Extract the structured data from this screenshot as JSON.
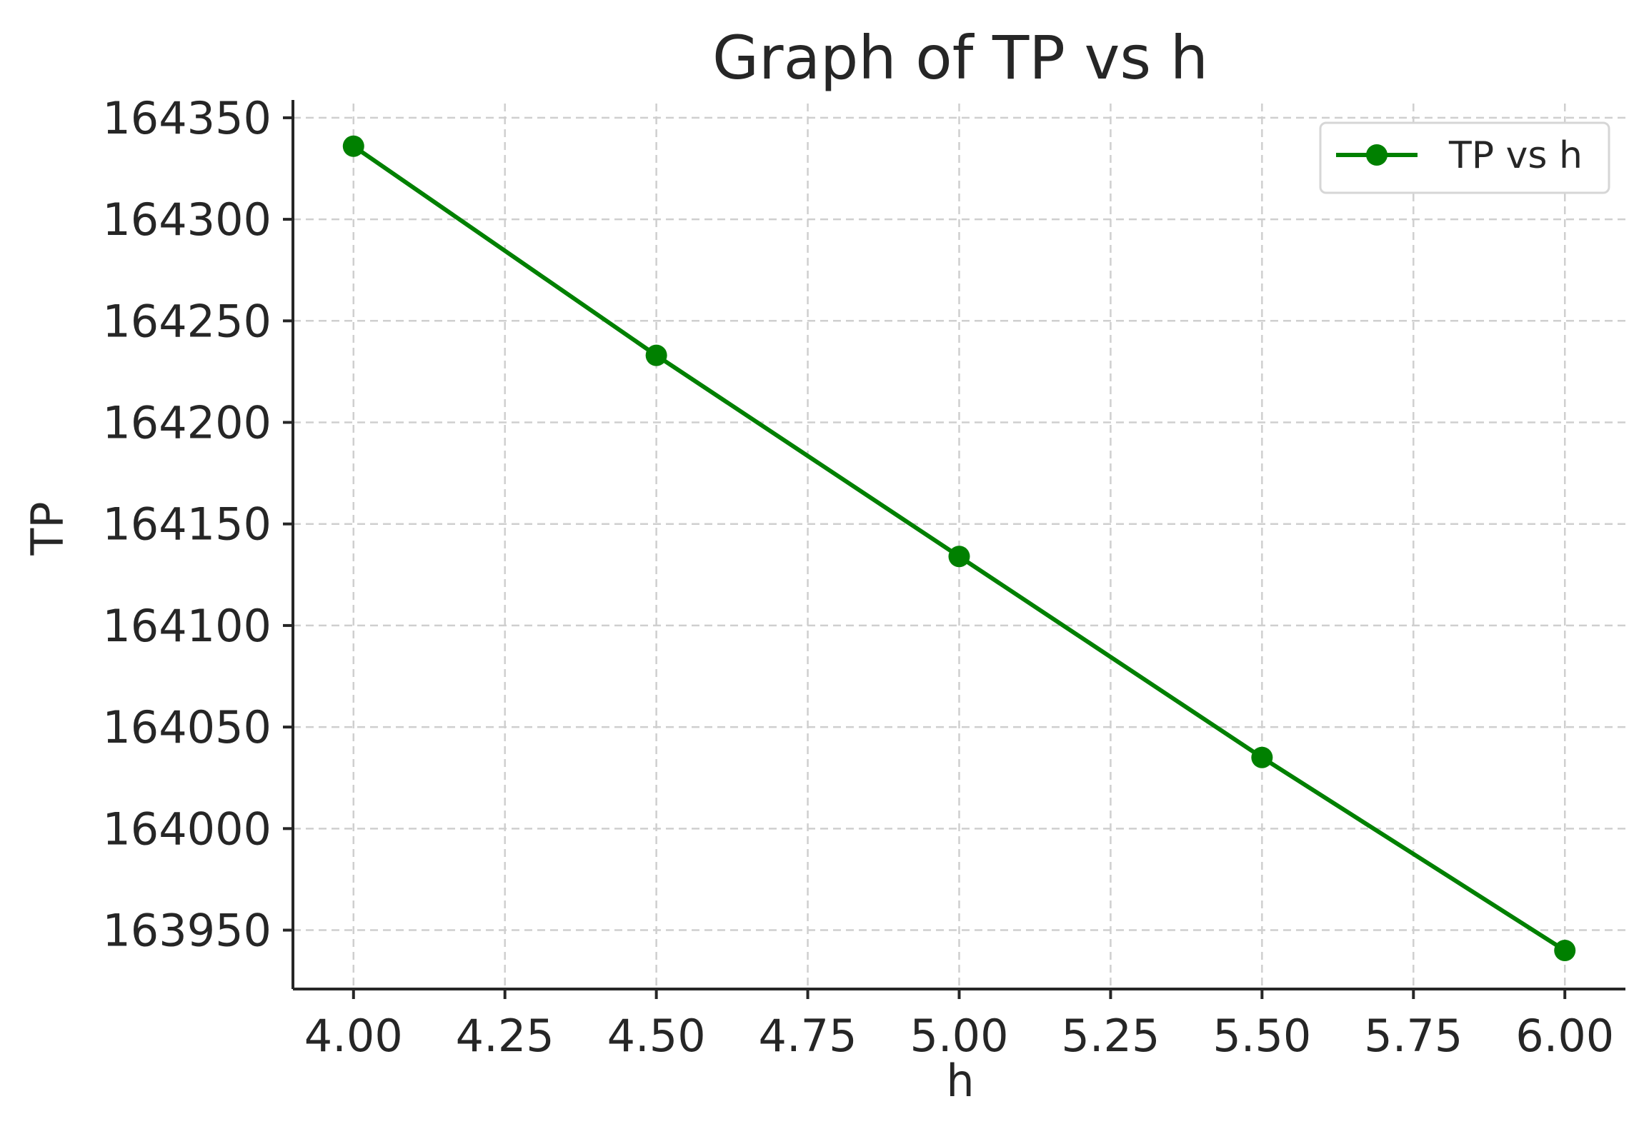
{
  "chart_data": {
    "type": "line",
    "title": "Graph of TP vs h",
    "xlabel": "h",
    "ylabel": "TP",
    "x": [
      4.0,
      4.5,
      5.0,
      5.5,
      6.0
    ],
    "series": [
      {
        "name": "TP vs h",
        "color": "#008000",
        "marker": "circle",
        "values": [
          164336,
          164233,
          164134,
          164035,
          163940
        ]
      }
    ],
    "xlim": [
      3.9,
      6.1
    ],
    "ylim": [
      163921,
      164357
    ],
    "x_ticks": [
      "4.00",
      "4.25",
      "4.50",
      "4.75",
      "5.00",
      "5.25",
      "5.50",
      "5.75",
      "6.00"
    ],
    "y_ticks": [
      "163950",
      "164000",
      "164050",
      "164100",
      "164150",
      "164200",
      "164250",
      "164300",
      "164350"
    ],
    "grid": true,
    "grid_style": "dashed",
    "legend_position": "top-right"
  }
}
